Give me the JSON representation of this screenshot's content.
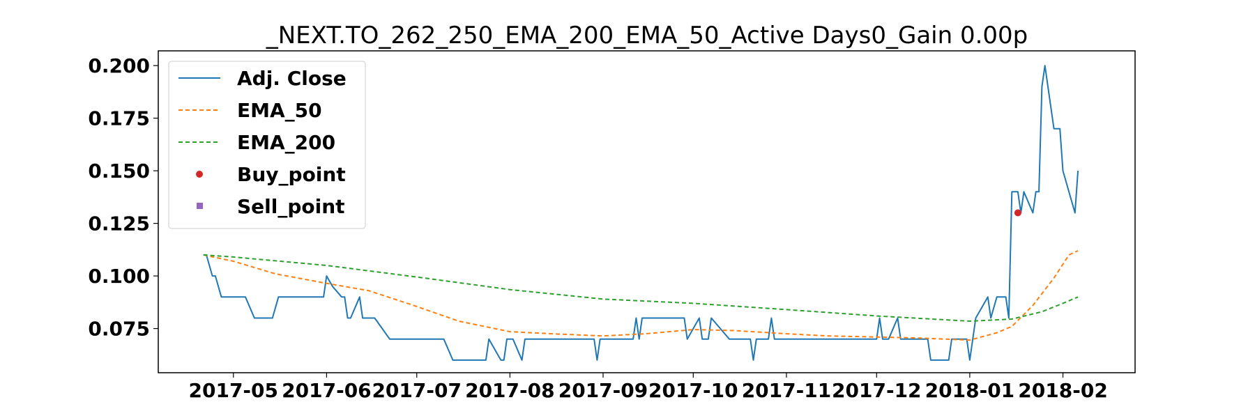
{
  "chart_data": {
    "type": "line",
    "title": "_NEXT.TO_262_250_EMA_200_EMA_50_Active Days0_Gain   0.00p",
    "xlabel": "",
    "ylabel": "",
    "ylim": [
      0.054,
      0.207
    ],
    "yticks": [
      "0.075",
      "0.100",
      "0.125",
      "0.150",
      "0.175",
      "0.200"
    ],
    "xlim": [
      "2017-04-06",
      "2018-02-25"
    ],
    "xticks": [
      {
        "date": "2017-05-01",
        "label": "2017-05"
      },
      {
        "date": "2017-06-01",
        "label": "2017-06"
      },
      {
        "date": "2017-07-01",
        "label": "2017-07"
      },
      {
        "date": "2017-08-01",
        "label": "2017-08"
      },
      {
        "date": "2017-09-01",
        "label": "2017-09"
      },
      {
        "date": "2017-10-01",
        "label": "2017-10"
      },
      {
        "date": "2017-11-01",
        "label": "2017-11"
      },
      {
        "date": "2017-12-01",
        "label": "2017-12"
      },
      {
        "date": "2018-01-01",
        "label": "2018-01"
      },
      {
        "date": "2018-02-01",
        "label": "2018-02"
      }
    ],
    "grid": false,
    "legend_position": "upper-left",
    "series": [
      {
        "name": "Adj. Close",
        "color": "#1f77b4",
        "style": "solid",
        "points": [
          [
            "2017-04-21",
            0.11
          ],
          [
            "2017-04-22",
            0.11
          ],
          [
            "2017-04-24",
            0.1
          ],
          [
            "2017-04-25",
            0.1
          ],
          [
            "2017-04-27",
            0.09
          ],
          [
            "2017-05-05",
            0.09
          ],
          [
            "2017-05-08",
            0.08
          ],
          [
            "2017-05-14",
            0.08
          ],
          [
            "2017-05-16",
            0.09
          ],
          [
            "2017-05-31",
            0.09
          ],
          [
            "2017-06-01",
            0.1
          ],
          [
            "2017-06-03",
            0.095
          ],
          [
            "2017-06-06",
            0.09
          ],
          [
            "2017-06-07",
            0.09
          ],
          [
            "2017-06-08",
            0.08
          ],
          [
            "2017-06-09",
            0.08
          ],
          [
            "2017-06-12",
            0.09
          ],
          [
            "2017-06-13",
            0.08
          ],
          [
            "2017-06-17",
            0.08
          ],
          [
            "2017-06-22",
            0.07
          ],
          [
            "2017-07-06",
            0.07
          ],
          [
            "2017-07-10",
            0.07
          ],
          [
            "2017-07-13",
            0.06
          ],
          [
            "2017-07-24",
            0.06
          ],
          [
            "2017-07-25",
            0.07
          ],
          [
            "2017-07-29",
            0.06
          ],
          [
            "2017-07-30",
            0.06
          ],
          [
            "2017-07-31",
            0.07
          ],
          [
            "2017-08-02",
            0.07
          ],
          [
            "2017-08-05",
            0.06
          ],
          [
            "2017-08-06",
            0.07
          ],
          [
            "2017-08-29",
            0.07
          ],
          [
            "2017-08-30",
            0.06
          ],
          [
            "2017-08-31",
            0.07
          ],
          [
            "2017-09-11",
            0.07
          ],
          [
            "2017-09-12",
            0.08
          ],
          [
            "2017-09-13",
            0.07
          ],
          [
            "2017-09-14",
            0.08
          ],
          [
            "2017-09-28",
            0.08
          ],
          [
            "2017-09-29",
            0.07
          ],
          [
            "2017-10-01",
            0.075
          ],
          [
            "2017-10-03",
            0.08
          ],
          [
            "2017-10-04",
            0.07
          ],
          [
            "2017-10-05",
            0.07
          ],
          [
            "2017-10-06",
            0.07
          ],
          [
            "2017-10-07",
            0.08
          ],
          [
            "2017-10-10",
            0.075
          ],
          [
            "2017-10-13",
            0.07
          ],
          [
            "2017-10-20",
            0.07
          ],
          [
            "2017-10-21",
            0.06
          ],
          [
            "2017-10-22",
            0.07
          ],
          [
            "2017-10-26",
            0.07
          ],
          [
            "2017-10-27",
            0.08
          ],
          [
            "2017-10-28",
            0.07
          ],
          [
            "2017-12-01",
            0.07
          ],
          [
            "2017-12-02",
            0.08
          ],
          [
            "2017-12-03",
            0.07
          ],
          [
            "2017-12-05",
            0.07
          ],
          [
            "2017-12-08",
            0.08
          ],
          [
            "2017-12-09",
            0.07
          ],
          [
            "2017-12-18",
            0.07
          ],
          [
            "2017-12-19",
            0.06
          ],
          [
            "2017-12-25",
            0.06
          ],
          [
            "2017-12-26",
            0.07
          ],
          [
            "2017-12-31",
            0.07
          ],
          [
            "2018-01-01",
            0.06
          ],
          [
            "2018-01-03",
            0.08
          ],
          [
            "2018-01-07",
            0.09
          ],
          [
            "2018-01-08",
            0.08
          ],
          [
            "2018-01-10",
            0.09
          ],
          [
            "2018-01-13",
            0.09
          ],
          [
            "2018-01-14",
            0.08
          ],
          [
            "2018-01-15",
            0.14
          ],
          [
            "2018-01-17",
            0.14
          ],
          [
            "2018-01-18",
            0.13
          ],
          [
            "2018-01-19",
            0.14
          ],
          [
            "2018-01-22",
            0.13
          ],
          [
            "2018-01-23",
            0.14
          ],
          [
            "2018-01-24",
            0.14
          ],
          [
            "2018-01-25",
            0.19
          ],
          [
            "2018-01-26",
            0.2
          ],
          [
            "2018-01-28",
            0.18
          ],
          [
            "2018-01-29",
            0.17
          ],
          [
            "2018-01-31",
            0.17
          ],
          [
            "2018-02-01",
            0.15
          ],
          [
            "2018-02-05",
            0.13
          ],
          [
            "2018-02-06",
            0.15
          ]
        ]
      },
      {
        "name": "EMA_50",
        "color": "#ff7f0e",
        "style": "dashed",
        "points": [
          [
            "2017-04-21",
            0.11
          ],
          [
            "2017-05-01",
            0.107
          ],
          [
            "2017-05-15",
            0.101
          ],
          [
            "2017-06-01",
            0.0965
          ],
          [
            "2017-06-15",
            0.093
          ],
          [
            "2017-07-01",
            0.0855
          ],
          [
            "2017-07-15",
            0.0785
          ],
          [
            "2017-08-01",
            0.0735
          ],
          [
            "2017-08-15",
            0.0725
          ],
          [
            "2017-09-01",
            0.0715
          ],
          [
            "2017-09-15",
            0.0725
          ],
          [
            "2017-10-01",
            0.0745
          ],
          [
            "2017-10-15",
            0.074
          ],
          [
            "2017-11-01",
            0.0725
          ],
          [
            "2017-11-15",
            0.0715
          ],
          [
            "2017-12-01",
            0.071
          ],
          [
            "2017-12-15",
            0.0705
          ],
          [
            "2018-01-01",
            0.0695
          ],
          [
            "2018-01-10",
            0.073
          ],
          [
            "2018-01-15",
            0.076
          ],
          [
            "2018-01-22",
            0.086
          ],
          [
            "2018-01-29",
            0.099
          ],
          [
            "2018-02-03",
            0.11
          ],
          [
            "2018-02-06",
            0.112
          ]
        ]
      },
      {
        "name": "EMA_200",
        "color": "#2ca02c",
        "style": "dashed",
        "points": [
          [
            "2017-04-21",
            0.11
          ],
          [
            "2017-05-01",
            0.109
          ],
          [
            "2017-06-01",
            0.105
          ],
          [
            "2017-07-01",
            0.0995
          ],
          [
            "2017-08-01",
            0.0935
          ],
          [
            "2017-09-01",
            0.089
          ],
          [
            "2017-10-01",
            0.087
          ],
          [
            "2017-11-01",
            0.084
          ],
          [
            "2017-12-01",
            0.081
          ],
          [
            "2018-01-01",
            0.0785
          ],
          [
            "2018-01-15",
            0.0795
          ],
          [
            "2018-01-25",
            0.083
          ],
          [
            "2018-02-01",
            0.087
          ],
          [
            "2018-02-06",
            0.09
          ]
        ]
      }
    ],
    "markers": [
      {
        "name": "Buy_point",
        "color": "#d62728",
        "shape": "circle",
        "points": [
          [
            "2018-01-17",
            0.13
          ]
        ]
      },
      {
        "name": "Sell_point",
        "color": "#9467bd",
        "shape": "square",
        "points": []
      }
    ]
  }
}
